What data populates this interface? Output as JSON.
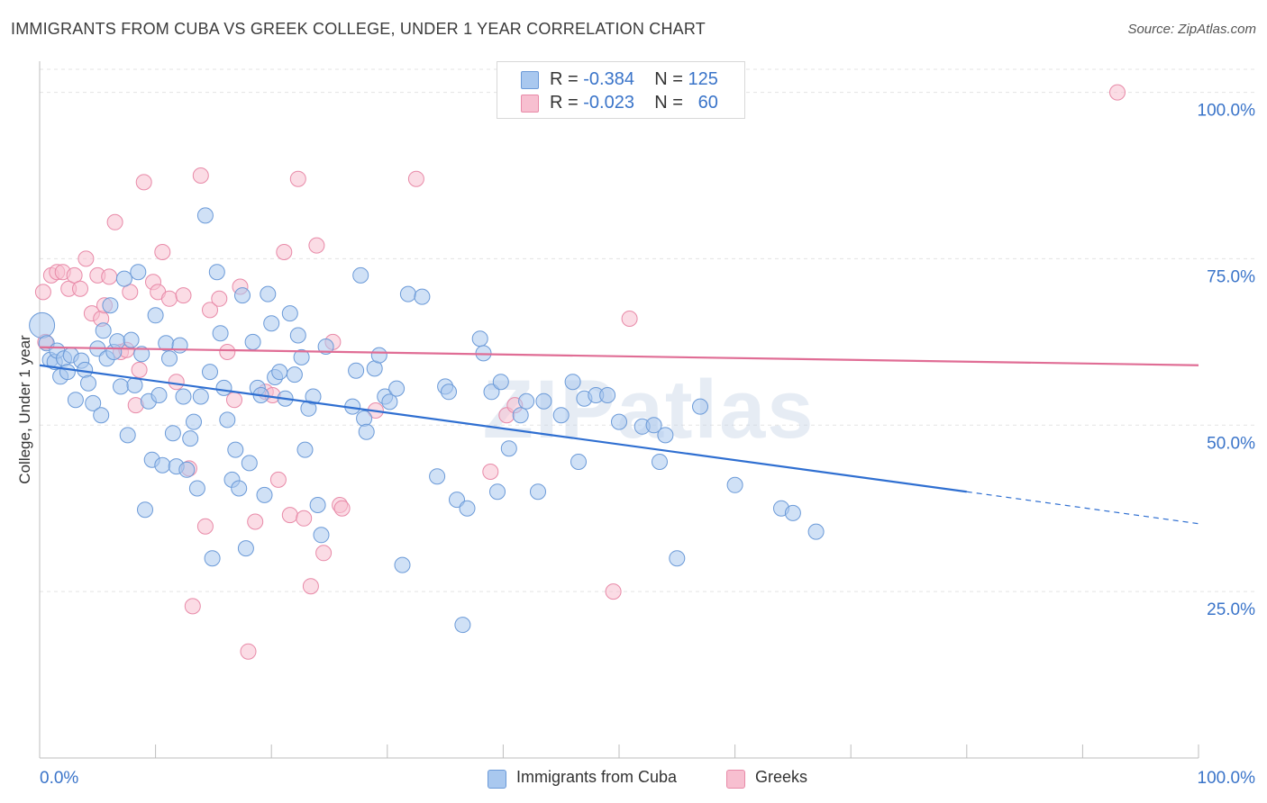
{
  "title": "IMMIGRANTS FROM CUBA VS GREEK COLLEGE, UNDER 1 YEAR CORRELATION CHART",
  "source": "Source: ZipAtlas.com",
  "watermark": "ZIPatlas",
  "legend": {
    "rows": [
      {
        "r_label": "R = ",
        "r_value": "-0.384",
        "n_label": "N = ",
        "n_value": "125",
        "color": "#a9c8ef",
        "border": "#6b9ad8"
      },
      {
        "r_label": "R = ",
        "r_value": "-0.023",
        "n_label": "N = ",
        "n_value": "60",
        "color": "#f7bfd0",
        "border": "#e88aa8"
      }
    ]
  },
  "bottom_legend": [
    {
      "label": "Immigrants from Cuba",
      "color": "#a9c8ef",
      "border": "#6b9ad8"
    },
    {
      "label": "Greeks",
      "color": "#f7bfd0",
      "border": "#e88aa8"
    }
  ],
  "chart_data": {
    "type": "scatter",
    "title": "IMMIGRANTS FROM CUBA VS GREEK COLLEGE, UNDER 1 YEAR CORRELATION CHART",
    "xlabel": "",
    "ylabel": "College, Under 1 year",
    "xlim": [
      0,
      100
    ],
    "ylim": [
      0,
      104
    ],
    "x_tick_labels": [
      "0.0%",
      "100.0%"
    ],
    "y_ticks": [
      25,
      50,
      75,
      100
    ],
    "y_tick_labels": [
      "25.0%",
      "50.0%",
      "75.0%",
      "100.0%"
    ],
    "grid": true,
    "legend_position": "top-center",
    "series": [
      {
        "name": "Immigrants from Cuba",
        "color": "#a9c8ef",
        "stroke": "#6b9ad8",
        "line_color": "#2f6fd1",
        "trend": {
          "x0": 0,
          "y0": 59.0,
          "x1": 80,
          "y1": 40.0,
          "dash_to_x": 100,
          "dash_y": 35.2
        },
        "points": [
          [
            0.2,
            65.0
          ],
          [
            0.6,
            62.3
          ],
          [
            0.9,
            59.8
          ],
          [
            1.3,
            59.5
          ],
          [
            1.5,
            61.2
          ],
          [
            1.8,
            57.3
          ],
          [
            2.1,
            60.0
          ],
          [
            2.4,
            58.0
          ],
          [
            2.7,
            60.5
          ],
          [
            3.1,
            53.8
          ],
          [
            3.6,
            59.7
          ],
          [
            3.9,
            58.3
          ],
          [
            4.2,
            56.3
          ],
          [
            4.6,
            53.3
          ],
          [
            5.0,
            61.5
          ],
          [
            5.3,
            51.5
          ],
          [
            5.5,
            64.2
          ],
          [
            5.8,
            60.0
          ],
          [
            6.1,
            68.0
          ],
          [
            6.4,
            61.0
          ],
          [
            6.7,
            62.6
          ],
          [
            7.0,
            55.8
          ],
          [
            7.3,
            72.0
          ],
          [
            7.6,
            48.5
          ],
          [
            7.9,
            62.8
          ],
          [
            8.2,
            56.0
          ],
          [
            8.5,
            73.0
          ],
          [
            8.8,
            60.7
          ],
          [
            9.1,
            37.3
          ],
          [
            9.4,
            53.6
          ],
          [
            9.7,
            44.8
          ],
          [
            10.0,
            66.5
          ],
          [
            10.3,
            54.5
          ],
          [
            10.6,
            44.0
          ],
          [
            10.9,
            62.3
          ],
          [
            11.2,
            60.0
          ],
          [
            11.5,
            48.8
          ],
          [
            11.8,
            43.8
          ],
          [
            12.1,
            62.0
          ],
          [
            12.4,
            54.3
          ],
          [
            12.7,
            43.3
          ],
          [
            13.0,
            48.0
          ],
          [
            13.3,
            50.5
          ],
          [
            13.6,
            40.5
          ],
          [
            13.9,
            54.3
          ],
          [
            14.3,
            81.5
          ],
          [
            14.7,
            58.0
          ],
          [
            14.9,
            30.0
          ],
          [
            15.3,
            73.0
          ],
          [
            15.6,
            63.8
          ],
          [
            15.9,
            55.6
          ],
          [
            16.2,
            50.8
          ],
          [
            16.6,
            41.8
          ],
          [
            16.9,
            46.3
          ],
          [
            17.2,
            40.5
          ],
          [
            17.5,
            69.5
          ],
          [
            17.8,
            31.5
          ],
          [
            18.1,
            44.3
          ],
          [
            18.4,
            62.5
          ],
          [
            18.8,
            55.6
          ],
          [
            19.1,
            54.5
          ],
          [
            19.4,
            39.5
          ],
          [
            19.7,
            69.7
          ],
          [
            20.0,
            65.3
          ],
          [
            20.3,
            57.2
          ],
          [
            20.7,
            58.0
          ],
          [
            21.2,
            54.0
          ],
          [
            21.6,
            66.8
          ],
          [
            22.0,
            57.6
          ],
          [
            22.3,
            63.5
          ],
          [
            22.6,
            60.2
          ],
          [
            22.9,
            46.3
          ],
          [
            23.2,
            52.5
          ],
          [
            23.6,
            54.3
          ],
          [
            24.0,
            38.0
          ],
          [
            24.3,
            33.5
          ],
          [
            24.7,
            61.8
          ],
          [
            27.0,
            52.8
          ],
          [
            27.3,
            58.2
          ],
          [
            27.7,
            72.5
          ],
          [
            28.0,
            51.0
          ],
          [
            28.2,
            49.0
          ],
          [
            28.9,
            58.5
          ],
          [
            29.3,
            60.5
          ],
          [
            29.8,
            54.3
          ],
          [
            30.2,
            53.5
          ],
          [
            30.8,
            55.5
          ],
          [
            31.3,
            29.0
          ],
          [
            31.8,
            69.7
          ],
          [
            33.0,
            69.3
          ],
          [
            34.3,
            42.3
          ],
          [
            35.0,
            55.8
          ],
          [
            35.3,
            55.0
          ],
          [
            36.0,
            38.8
          ],
          [
            36.5,
            20.0
          ],
          [
            36.9,
            37.5
          ],
          [
            38.0,
            63.0
          ],
          [
            38.3,
            60.8
          ],
          [
            39.0,
            55.0
          ],
          [
            39.5,
            40.0
          ],
          [
            39.8,
            56.5
          ],
          [
            40.5,
            46.5
          ],
          [
            41.5,
            51.5
          ],
          [
            42.0,
            53.6
          ],
          [
            43.0,
            40.0
          ],
          [
            43.5,
            53.6
          ],
          [
            45.0,
            51.5
          ],
          [
            46.0,
            56.5
          ],
          [
            46.5,
            44.5
          ],
          [
            47.0,
            54.0
          ],
          [
            48.0,
            54.5
          ],
          [
            49.0,
            54.5
          ],
          [
            50.0,
            50.5
          ],
          [
            52.0,
            49.8
          ],
          [
            53.0,
            50.0
          ],
          [
            53.5,
            44.5
          ],
          [
            54.0,
            48.5
          ],
          [
            55.0,
            30.0
          ],
          [
            57.0,
            52.8
          ],
          [
            60.0,
            41.0
          ],
          [
            64.0,
            37.5
          ],
          [
            65.0,
            36.8
          ],
          [
            67.0,
            34.0
          ]
        ]
      },
      {
        "name": "Greeks",
        "color": "#f7bfd0",
        "stroke": "#e88aa8",
        "line_color": "#e06d95",
        "trend": {
          "x0": 0,
          "y0": 61.7,
          "x1": 100,
          "y1": 59.0
        },
        "points": [
          [
            0.3,
            70.0
          ],
          [
            0.5,
            62.5
          ],
          [
            1.0,
            72.5
          ],
          [
            1.5,
            73.0
          ],
          [
            2.0,
            73.0
          ],
          [
            2.5,
            70.5
          ],
          [
            3.0,
            72.5
          ],
          [
            3.5,
            70.5
          ],
          [
            4.0,
            75.0
          ],
          [
            4.5,
            66.8
          ],
          [
            5.0,
            72.5
          ],
          [
            5.3,
            66.0
          ],
          [
            5.6,
            68.0
          ],
          [
            6.0,
            72.3
          ],
          [
            6.5,
            80.5
          ],
          [
            7.0,
            61.0
          ],
          [
            7.5,
            61.3
          ],
          [
            7.8,
            70.0
          ],
          [
            8.3,
            53.0
          ],
          [
            8.6,
            58.3
          ],
          [
            9.0,
            86.5
          ],
          [
            9.8,
            71.5
          ],
          [
            10.2,
            70.0
          ],
          [
            10.6,
            76.0
          ],
          [
            11.2,
            69.0
          ],
          [
            11.8,
            56.5
          ],
          [
            12.4,
            69.5
          ],
          [
            12.9,
            43.5
          ],
          [
            13.2,
            22.8
          ],
          [
            13.9,
            87.5
          ],
          [
            14.3,
            34.8
          ],
          [
            14.7,
            67.3
          ],
          [
            15.5,
            69.0
          ],
          [
            16.2,
            61.0
          ],
          [
            16.8,
            53.8
          ],
          [
            17.3,
            70.8
          ],
          [
            18.0,
            16.0
          ],
          [
            18.6,
            35.5
          ],
          [
            19.5,
            55.0
          ],
          [
            20.1,
            54.5
          ],
          [
            20.6,
            41.8
          ],
          [
            21.1,
            76.0
          ],
          [
            21.6,
            36.5
          ],
          [
            22.3,
            87.0
          ],
          [
            22.8,
            36.0
          ],
          [
            23.4,
            25.8
          ],
          [
            23.9,
            77.0
          ],
          [
            24.5,
            30.8
          ],
          [
            25.3,
            62.5
          ],
          [
            25.9,
            38.0
          ],
          [
            26.1,
            37.5
          ],
          [
            29.0,
            52.2
          ],
          [
            32.5,
            87.0
          ],
          [
            38.9,
            43.0
          ],
          [
            40.3,
            51.5
          ],
          [
            41.0,
            53.0
          ],
          [
            49.5,
            25.0
          ],
          [
            50.9,
            66.0
          ],
          [
            56.4,
            100.0
          ],
          [
            93.0,
            100.0
          ]
        ]
      }
    ]
  }
}
